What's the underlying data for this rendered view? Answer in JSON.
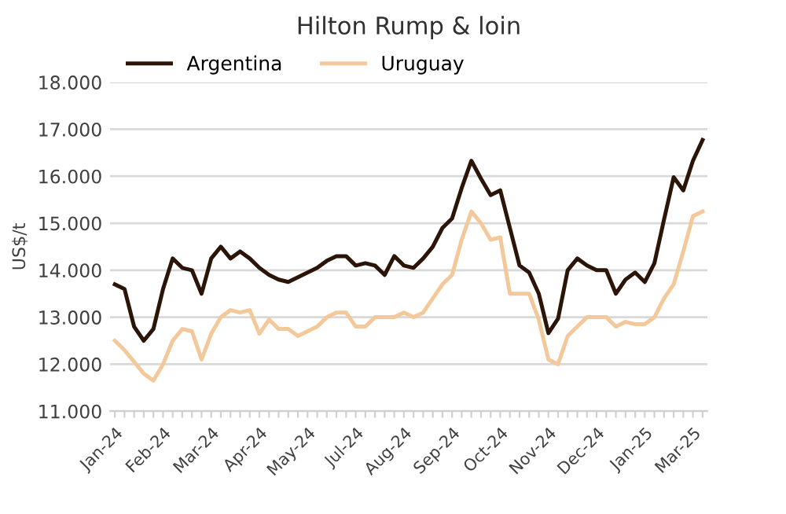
{
  "chart_data": {
    "type": "line",
    "title": "Hilton Rump & loin",
    "ylabel": "US$/t",
    "categories": [
      "Jan-24",
      null,
      null,
      null,
      null,
      "Feb-24",
      null,
      null,
      null,
      null,
      "Mar-24",
      null,
      null,
      null,
      null,
      "Apr-24",
      null,
      null,
      null,
      null,
      "May-24",
      null,
      null,
      null,
      null,
      "Jul-24",
      null,
      null,
      null,
      null,
      "Aug-24",
      null,
      null,
      null,
      null,
      "Sep-24",
      null,
      null,
      null,
      null,
      "Oct-24",
      null,
      null,
      null,
      null,
      "Nov-24",
      null,
      null,
      null,
      null,
      "Dec-24",
      null,
      null,
      null,
      null,
      "Jan-25",
      null,
      null,
      null,
      null,
      "Mar-25",
      null
    ],
    "series": [
      {
        "name": "Argentina",
        "color": "#2b1408",
        "values": [
          13700,
          13600,
          12800,
          12500,
          12750,
          13600,
          14250,
          14050,
          14000,
          13500,
          14250,
          14500,
          14250,
          14400,
          14250,
          14050,
          13900,
          13800,
          13750,
          13850,
          13950,
          14050,
          14200,
          14300,
          14300,
          14100,
          14150,
          14100,
          13900,
          14300,
          14100,
          14050,
          14250,
          14500,
          14900,
          15100,
          15750,
          16330,
          15950,
          15600,
          15700,
          14900,
          14100,
          13950,
          13500,
          12660,
          12970,
          14000,
          14250,
          14100,
          14000,
          14000,
          13500,
          13800,
          13950,
          13750,
          14150,
          15080,
          15980,
          15700,
          16330,
          16770
        ]
      },
      {
        "name": "Uruguay",
        "color": "#f3c89a",
        "values": [
          12500,
          12300,
          12050,
          11800,
          11650,
          12000,
          12500,
          12750,
          12700,
          12100,
          12650,
          13000,
          13150,
          13100,
          13150,
          12650,
          12950,
          12750,
          12750,
          12600,
          12700,
          12800,
          13000,
          13100,
          13100,
          12800,
          12800,
          13000,
          13000,
          13000,
          13100,
          13000,
          13100,
          13400,
          13700,
          13900,
          14650,
          15250,
          15000,
          14650,
          14700,
          13500,
          13500,
          13500,
          12950,
          12100,
          12000,
          12600,
          12800,
          13000,
          13000,
          13000,
          12800,
          12900,
          12850,
          12850,
          13000,
          13400,
          13700,
          14400,
          15150,
          15250
        ]
      }
    ],
    "ylim": [
      11000,
      18000
    ],
    "yticks": [
      {
        "value": 11000,
        "label": "11.000"
      },
      {
        "value": 12000,
        "label": "12.000"
      },
      {
        "value": 13000,
        "label": "13.000"
      },
      {
        "value": 14000,
        "label": "14.000"
      },
      {
        "value": 15000,
        "label": "15.000"
      },
      {
        "value": 16000,
        "label": "16.000"
      },
      {
        "value": 17000,
        "label": "17.000"
      },
      {
        "value": 18000,
        "label": "18.000"
      }
    ],
    "grid": "y",
    "legend": "top left",
    "marker": "none",
    "line_style": "solid"
  }
}
